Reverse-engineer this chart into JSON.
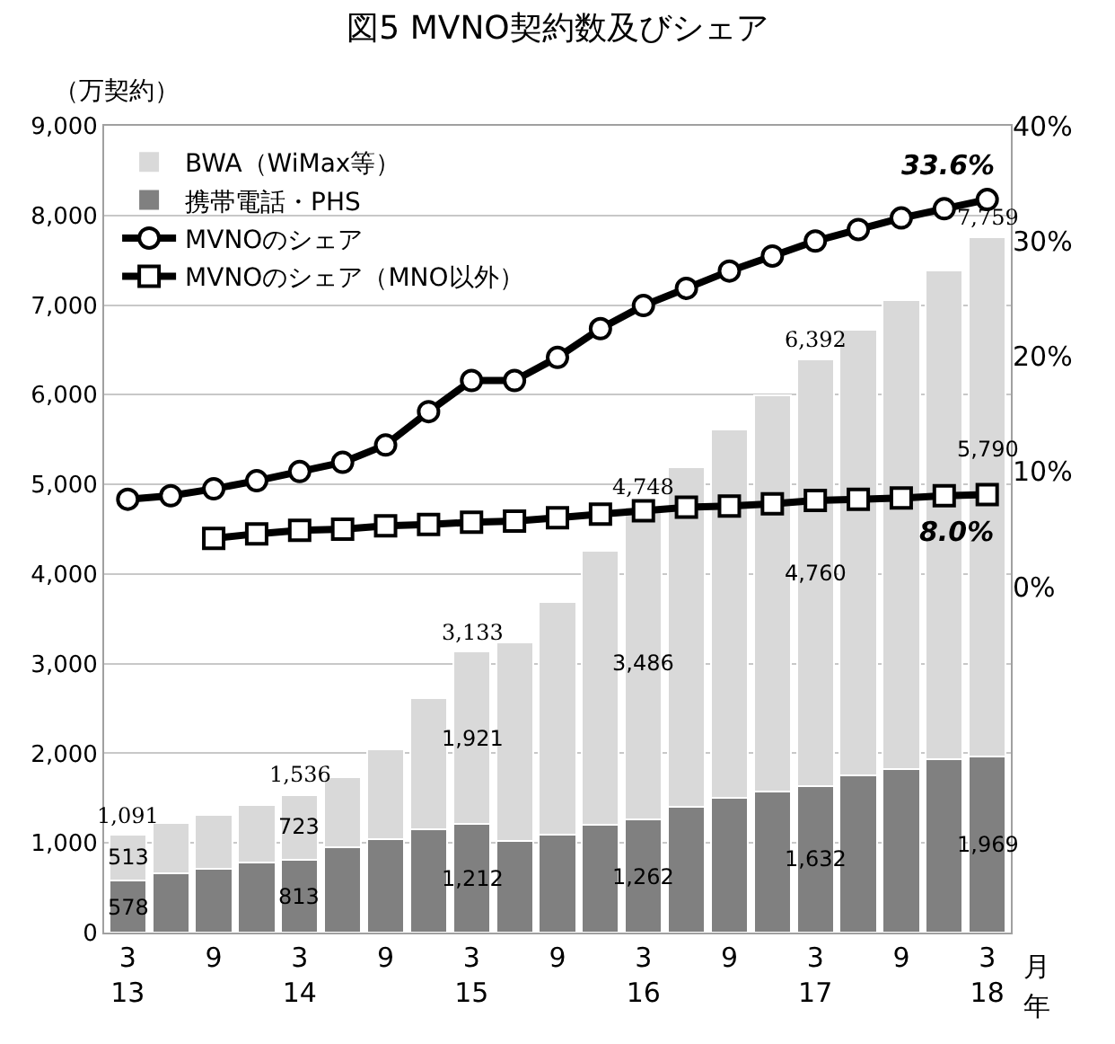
{
  "chart_data": {
    "type": "bar",
    "title": "図5 MVNO契約数及びシェア",
    "ylabel": "（万契約）",
    "annotations": [
      "月",
      "年"
    ],
    "categories": [
      "3\n13",
      null,
      "9",
      null,
      "3\n14",
      null,
      "9",
      null,
      "3\n15",
      null,
      "9",
      null,
      "3\n16",
      null,
      "9",
      null,
      "3\n17",
      null,
      "9",
      null,
      "3\n18"
    ],
    "stacked": true,
    "grid": "y",
    "legend": "top left",
    "ylim": [
      0,
      9000
    ],
    "yticks": [
      {
        "value": 0,
        "label": "0"
      },
      {
        "value": 1000,
        "label": "1,000"
      },
      {
        "value": 2000,
        "label": "2,000"
      },
      {
        "value": 3000,
        "label": "3,000"
      },
      {
        "value": 4000,
        "label": "4,000"
      },
      {
        "value": 5000,
        "label": "5,000"
      },
      {
        "value": 6000,
        "label": "6,000"
      },
      {
        "value": 7000,
        "label": "7,000"
      },
      {
        "value": 8000,
        "label": "8,000"
      },
      {
        "value": 9000,
        "label": "9,000"
      }
    ],
    "y2lim": [
      -30,
      40
    ],
    "y2ticks": [
      {
        "value": 0,
        "label": "0%"
      },
      {
        "value": 10,
        "label": "10%"
      },
      {
        "value": 20,
        "label": "20%"
      },
      {
        "value": 30,
        "label": "30%"
      },
      {
        "value": 40,
        "label": "40%"
      }
    ],
    "totals": [
      "1,091",
      null,
      null,
      null,
      "1,536",
      null,
      null,
      null,
      "3,133",
      null,
      null,
      null,
      "4,748",
      null,
      null,
      null,
      "6,392",
      null,
      null,
      null,
      "7,759"
    ],
    "series": [
      {
        "name": "携帯電話・PHS",
        "color": "#808080",
        "values": [
          578,
          658,
          713,
          786,
          813,
          951,
          1042,
          1152,
          1212,
          1024,
          1097,
          1207,
          1262,
          1408,
          1499,
          1572,
          1632,
          1755,
          1828,
          1938,
          1969
        ],
        "value_labels": [
          "578",
          null,
          null,
          null,
          "813",
          null,
          null,
          null,
          "1,212",
          null,
          null,
          null,
          "1,262",
          null,
          null,
          null,
          "1,632",
          null,
          null,
          null,
          "1,969"
        ]
      },
      {
        "name": "BWA（WiMax等）",
        "color": "#d9d9d9",
        "values": [
          513,
          567,
          603,
          640,
          723,
          786,
          1006,
          1462,
          1921,
          2212,
          2596,
          3053,
          3486,
          3784,
          4113,
          4424,
          4760,
          4973,
          5229,
          5448,
          5790
        ],
        "value_labels": [
          "513",
          null,
          null,
          null,
          "723",
          null,
          null,
          null,
          "1,921",
          null,
          null,
          null,
          "3,486",
          null,
          null,
          null,
          "4,760",
          null,
          null,
          null,
          "5,790"
        ]
      },
      {
        "name": "MVNOのシェア",
        "type": "line",
        "axis": "y2",
        "marker": "circle",
        "color": "#000000",
        "values": [
          7.6,
          7.9,
          8.5,
          9.2,
          10.0,
          10.8,
          12.3,
          15.2,
          17.9,
          17.9,
          19.9,
          22.4,
          24.4,
          25.9,
          27.4,
          28.7,
          30.0,
          31.0,
          32.0,
          32.8,
          33.6
        ],
        "value_labels": [
          null,
          null,
          null,
          null,
          null,
          null,
          null,
          null,
          null,
          null,
          null,
          null,
          null,
          null,
          null,
          null,
          null,
          null,
          null,
          null,
          "33.6%"
        ]
      },
      {
        "name": "MVNOのシェア（MNO以外）",
        "type": "line",
        "axis": "y2",
        "marker": "square",
        "color": "#000000",
        "values": [
          null,
          null,
          4.2,
          4.6,
          4.9,
          5.0,
          5.3,
          5.4,
          5.6,
          5.7,
          6.0,
          6.3,
          6.6,
          6.9,
          7.0,
          7.2,
          7.5,
          7.6,
          7.7,
          7.9,
          8.0
        ],
        "value_labels": [
          null,
          null,
          null,
          null,
          null,
          null,
          null,
          null,
          null,
          null,
          null,
          null,
          null,
          null,
          null,
          null,
          null,
          null,
          null,
          null,
          "8.0%"
        ]
      }
    ]
  }
}
